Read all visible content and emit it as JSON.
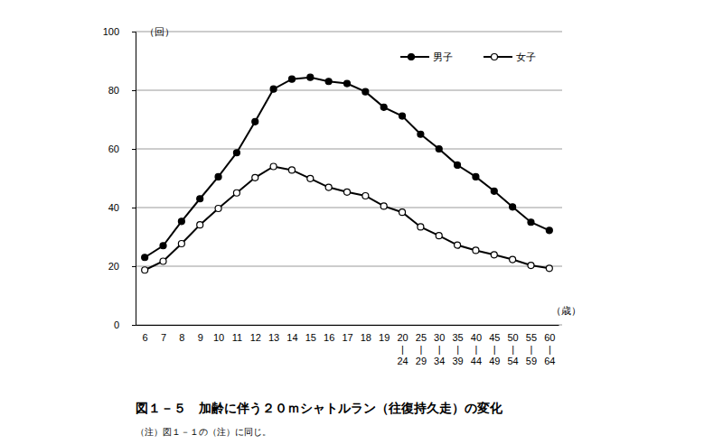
{
  "chart_data": {
    "type": "line",
    "title": "図１－５　加齢に伴う２０ｍシャトルラン（往復持久走）の変化",
    "note": "（注）図１－１の（注）に同じ。",
    "y_label": "（回）",
    "x_label": "（歳）",
    "categories": [
      "6",
      "7",
      "8",
      "9",
      "10",
      "11",
      "12",
      "13",
      "14",
      "15",
      "16",
      "17",
      "18",
      "19",
      "20\n|\n24",
      "25\n|\n29",
      "30\n|\n34",
      "35\n|\n39",
      "40\n|\n44",
      "45\n|\n49",
      "50\n|\n54",
      "55\n|\n59",
      "60\n|\n64"
    ],
    "series": [
      {
        "name": "男子",
        "color": "#000000",
        "marker": "filled-circle",
        "line_style": "solid",
        "values": [
          23,
          27,
          35.3,
          43,
          50.5,
          58.7,
          69.3,
          80.4,
          83.8,
          84.4,
          83,
          82.3,
          79.5,
          74.2,
          71.2,
          65,
          60,
          54.5,
          50.5,
          45.6,
          40.2,
          35,
          32.2
        ]
      },
      {
        "name": "女子",
        "color": "#000000",
        "marker": "open-circle",
        "line_style": "solid",
        "values": [
          18.7,
          21.7,
          27.7,
          34.1,
          39.7,
          45,
          50.2,
          54,
          52.8,
          49.9,
          46.9,
          45.3,
          44,
          40.5,
          38.4,
          33.4,
          30.4,
          27.2,
          25.4,
          23.9,
          22.3,
          20.3,
          19.3
        ]
      }
    ],
    "ylim": [
      0,
      100
    ],
    "yticks": [
      0,
      20,
      40,
      60,
      80,
      100
    ],
    "grid": true,
    "legend": "top-right"
  }
}
